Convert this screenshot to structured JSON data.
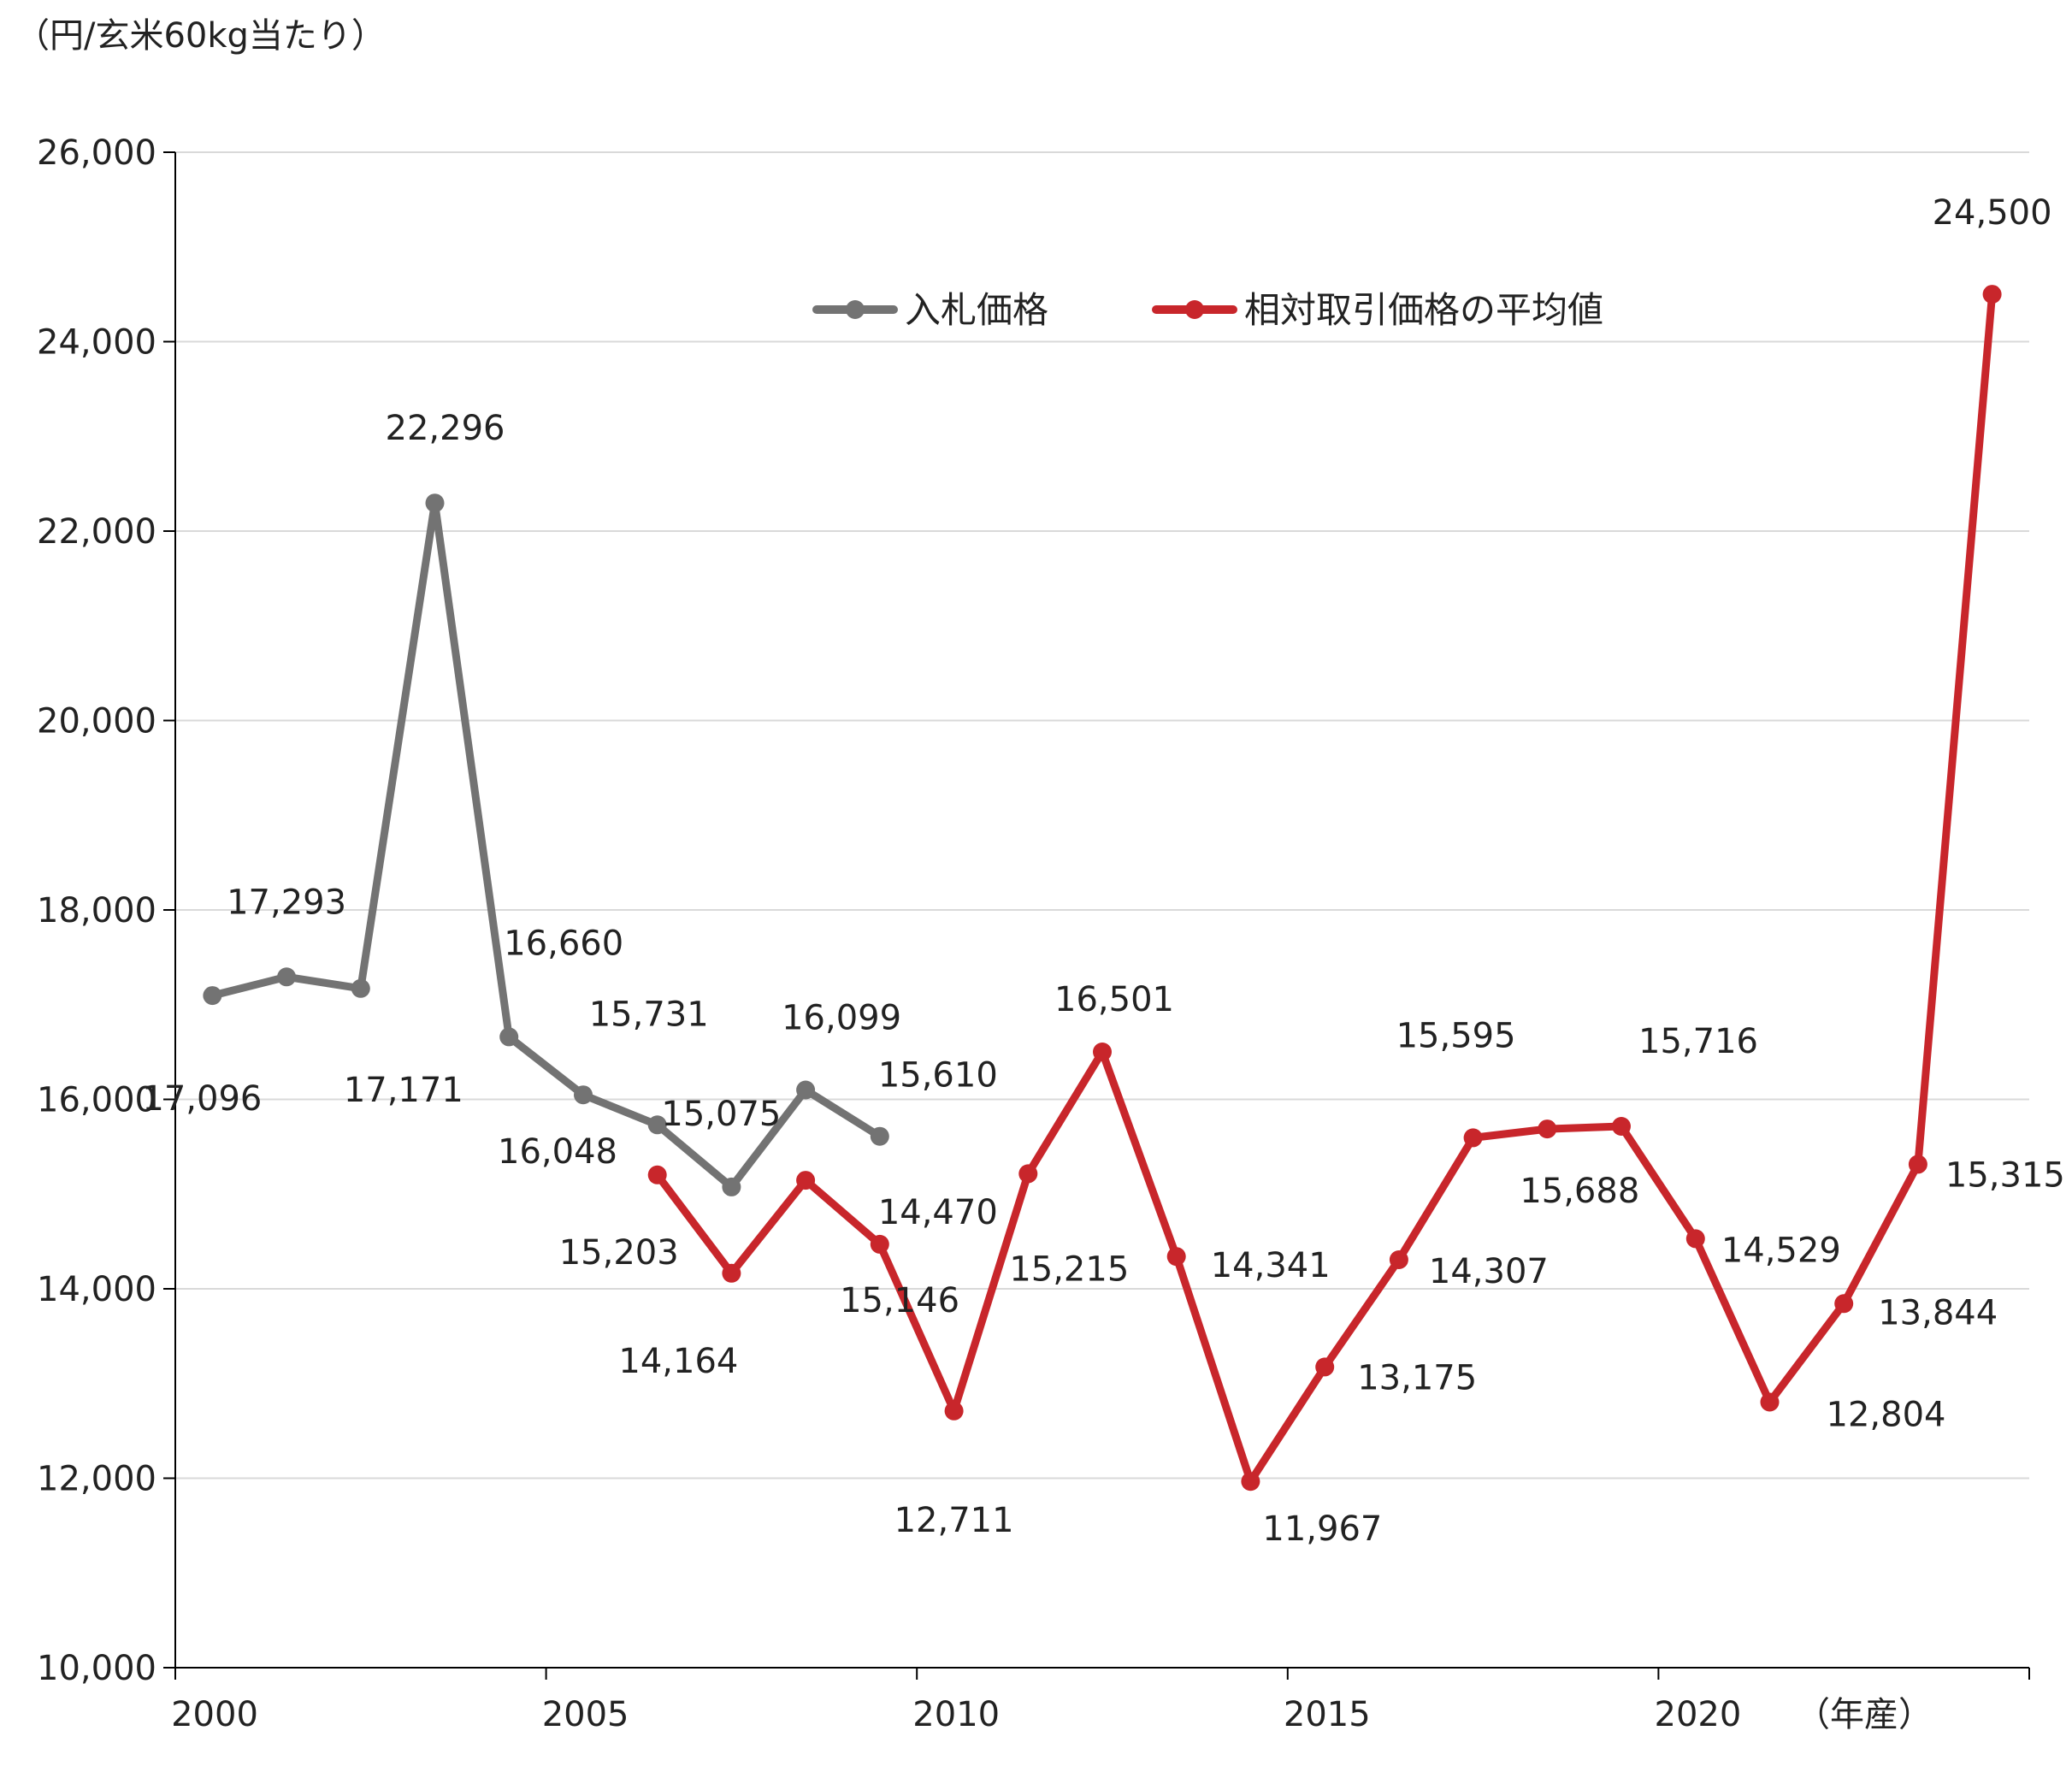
{
  "chart_data": {
    "type": "line",
    "ylabel": "（円/玄米60kg当たり）",
    "xlabel": "（年産）",
    "ylim": [
      10000,
      26000
    ],
    "yticks": [
      10000,
      12000,
      14000,
      16000,
      18000,
      20000,
      22000,
      24000,
      26000
    ],
    "ytick_labels": [
      "10,000",
      "12,000",
      "14,000",
      "16,000",
      "18,000",
      "20,000",
      "22,000",
      "24,000",
      "26,000"
    ],
    "xlim": [
      2000,
      2025
    ],
    "xticks": [
      2000,
      2005,
      2010,
      2015,
      2020
    ],
    "xtick_labels": [
      "2000",
      "2005",
      "2010",
      "2015",
      "2020"
    ],
    "grid": true,
    "legend_position": "top-center",
    "series": [
      {
        "name": "入札価格",
        "color": "#737373",
        "x": [
          2000,
          2001,
          2002,
          2003,
          2004,
          2005,
          2006,
          2007,
          2008,
          2009
        ],
        "values": [
          17096,
          17293,
          17171,
          22296,
          16660,
          16048,
          15731,
          15075,
          16099,
          15610
        ],
        "labels": [
          "17,096",
          "17,293",
          "17,171",
          "22,296",
          "16,660",
          "16,048",
          "15,731",
          "15,075",
          "16,099",
          "15,610"
        ]
      },
      {
        "name": "相対取引価格の平均値",
        "color": "#c8262b",
        "x": [
          2006,
          2007,
          2008,
          2009,
          2010,
          2011,
          2012,
          2013,
          2014,
          2015,
          2016,
          2017,
          2018,
          2019,
          2020,
          2021,
          2022,
          2023,
          2024
        ],
        "values": [
          15203,
          14164,
          15146,
          14470,
          12711,
          15215,
          16501,
          14341,
          11967,
          13175,
          14307,
          15595,
          15688,
          15716,
          14529,
          12804,
          13844,
          15315,
          24500
        ],
        "labels": [
          "15,203",
          "14,164",
          "15,146",
          "14,470",
          "12,711",
          "15,215",
          "16,501",
          "14,341",
          "11,967",
          "13,175",
          "14,307",
          "15,595",
          "15,688",
          "15,716",
          "14,529",
          "12,804",
          "13,844",
          "15,315",
          "24,500"
        ]
      }
    ]
  }
}
